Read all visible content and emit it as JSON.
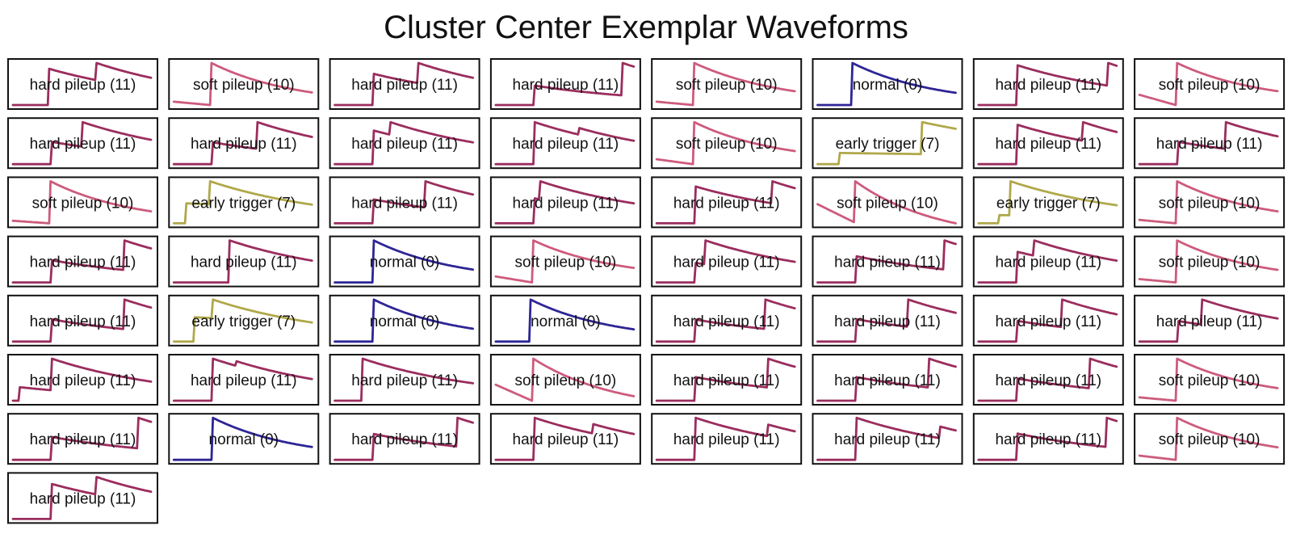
{
  "title": "Cluster Center Exemplar Waveforms",
  "colors": {
    "hard pileup": "#9b2d5e",
    "soft pileup": "#cd5b7c",
    "normal": "#2e2596",
    "early trigger": "#b0a84a"
  },
  "chart_data": {
    "type": "line",
    "title": "Cluster Center Exemplar Waveforms",
    "xlabel": "",
    "ylabel": "",
    "grid": false,
    "axes_visible": false,
    "n_samples": 100,
    "panels": [
      {
        "label": "hard pileup (11)",
        "kind": "hard pileup",
        "params": {
          "t0": 26,
          "a1": 0.95,
          "t2": 60,
          "a2": 0.45,
          "tau": 90,
          "base0": 0.1
        }
      },
      {
        "label": "soft pileup (10)",
        "kind": "soft pileup",
        "params": {
          "t0": 27,
          "a1": 0.97,
          "pre_slope": 0.08,
          "tau": 60,
          "base0": 0.08
        }
      },
      {
        "label": "hard pileup (11)",
        "kind": "hard pileup",
        "params": {
          "t0": 28,
          "a1": 0.85,
          "t2": 60,
          "a2": 0.55,
          "tau": 90,
          "base0": 0.08
        }
      },
      {
        "label": "hard pileup (11)",
        "kind": "hard pileup",
        "params": {
          "t0": 28,
          "a1": 0.45,
          "t2": 91,
          "a2": 0.75,
          "tau": 90,
          "base0": 0.08
        }
      },
      {
        "label": "soft pileup (10)",
        "kind": "soft pileup",
        "params": {
          "t0": 27,
          "a1": 0.97,
          "pre_slope": 0.08,
          "tau": 65,
          "base0": 0.08
        }
      },
      {
        "label": "normal (0)",
        "kind": "normal",
        "params": {
          "t0": 25,
          "a1": 0.95,
          "tau": 60,
          "base0": 0.08
        }
      },
      {
        "label": "hard pileup (11)",
        "kind": "hard pileup",
        "params": {
          "t0": 28,
          "a1": 0.7,
          "t2": 93,
          "a2": 0.4,
          "tau": 90,
          "base0": 0.08
        }
      },
      {
        "label": "soft pileup (10)",
        "kind": "soft pileup",
        "params": {
          "t0": 27,
          "a1": 0.95,
          "pre_slope": 0.25,
          "tau": 60,
          "base0": 0.2
        }
      },
      {
        "label": "hard pileup (11)",
        "kind": "hard pileup",
        "params": {
          "t0": 28,
          "a1": 0.5,
          "t2": 50,
          "a2": 0.55,
          "tau": 90,
          "base0": 0.08
        }
      },
      {
        "label": "hard pileup (11)",
        "kind": "hard pileup",
        "params": {
          "t0": 28,
          "a1": 0.45,
          "t2": 60,
          "a2": 0.55,
          "tau": 90,
          "base0": 0.08
        }
      },
      {
        "label": "hard pileup (11)",
        "kind": "hard pileup",
        "params": {
          "t0": 28,
          "a1": 0.8,
          "t2": 40,
          "a2": 0.3,
          "tau": 90,
          "base0": 0.08
        }
      },
      {
        "label": "hard pileup (11)",
        "kind": "hard pileup",
        "params": {
          "t0": 28,
          "a1": 0.95,
          "t2": 60,
          "a2": 0.15,
          "tau": 90,
          "base0": 0.08
        }
      },
      {
        "label": "soft pileup (10)",
        "kind": "soft pileup",
        "params": {
          "t0": 27,
          "a1": 0.97,
          "pre_slope": 0.12,
          "tau": 60,
          "base0": 0.1
        }
      },
      {
        "label": "early trigger (7)",
        "kind": "early trigger",
        "params": {
          "t1": 16,
          "e1": 0.2,
          "t2": 75,
          "e2": 0.55,
          "tau": 140,
          "base0": 0.06
        }
      },
      {
        "label": "hard pileup (11)",
        "kind": "hard pileup",
        "params": {
          "t0": 28,
          "a1": 0.95,
          "t2": 75,
          "a2": 0.45,
          "tau": 90,
          "base0": 0.08
        }
      },
      {
        "label": "hard pileup (11)",
        "kind": "hard pileup",
        "params": {
          "t0": 28,
          "a1": 0.5,
          "t2": 62,
          "a2": 0.6,
          "tau": 90,
          "base0": 0.08
        }
      },
      {
        "label": "soft pileup (10)",
        "kind": "soft pileup",
        "params": {
          "t0": 27,
          "a1": 0.98,
          "pre_slope": 0.06,
          "tau": 60,
          "base0": 0.08
        }
      },
      {
        "label": "early trigger (7)",
        "kind": "early trigger",
        "params": {
          "t1": 9,
          "e1": 0.45,
          "t2": 26,
          "e2": 0.5,
          "tau": 90,
          "base0": 0.06
        }
      },
      {
        "label": "hard pileup (11)",
        "kind": "hard pileup",
        "params": {
          "t0": 28,
          "a1": 0.5,
          "t2": 65,
          "a2": 0.55,
          "tau": 90,
          "base0": 0.08
        }
      },
      {
        "label": "hard pileup (11)",
        "kind": "hard pileup",
        "params": {
          "t0": 28,
          "a1": 0.55,
          "t2": 32,
          "a2": 0.4,
          "tau": 90,
          "base0": 0.08
        }
      },
      {
        "label": "hard pileup (11)",
        "kind": "hard pileup",
        "params": {
          "t0": 28,
          "a1": 0.75,
          "t2": 83,
          "a2": 0.45,
          "tau": 90,
          "base0": 0.08
        }
      },
      {
        "label": "soft pileup (10)",
        "kind": "soft pileup",
        "params": {
          "t0": 27,
          "a1": 0.97,
          "pre_slope": 0.3,
          "tau": 60,
          "base0": 0.6
        }
      },
      {
        "label": "early trigger (7)",
        "kind": "early trigger",
        "params": {
          "t1": 15,
          "e1": 0.15,
          "t2": 23,
          "e2": 0.62,
          "tau": 90,
          "base0": 0.06
        }
      },
      {
        "label": "soft pileup (10)",
        "kind": "soft pileup",
        "params": {
          "t0": 27,
          "a1": 0.97,
          "pre_slope": 0.08,
          "tau": 60,
          "base0": 0.1
        }
      },
      {
        "label": "hard pileup (11)",
        "kind": "hard pileup",
        "params": {
          "t0": 28,
          "a1": 0.45,
          "t2": 80,
          "a2": 0.6,
          "tau": 90,
          "base0": 0.08
        }
      },
      {
        "label": "hard pileup (11)",
        "kind": "hard pileup",
        "params": {
          "t0": 40,
          "a1": 0.9,
          "tau": 90,
          "base0": 0.08
        }
      },
      {
        "label": "normal (0)",
        "kind": "normal",
        "params": {
          "t0": 28,
          "a1": 0.95,
          "tau": 60,
          "base0": 0.08
        }
      },
      {
        "label": "soft pileup (10)",
        "kind": "soft pileup",
        "params": {
          "t0": 27,
          "a1": 0.95,
          "pre_slope": 0.15,
          "tau": 60,
          "base0": 0.08
        }
      },
      {
        "label": "hard pileup (11)",
        "kind": "hard pileup",
        "params": {
          "t0": 28,
          "a1": 0.45,
          "t2": 35,
          "a2": 0.55,
          "tau": 90,
          "base0": 0.08
        }
      },
      {
        "label": "hard pileup (11)",
        "kind": "hard pileup",
        "params": {
          "t0": 28,
          "a1": 0.45,
          "t2": 91,
          "a2": 0.5,
          "tau": 90,
          "base0": 0.08
        }
      },
      {
        "label": "hard pileup (11)",
        "kind": "hard pileup",
        "params": {
          "t0": 28,
          "a1": 0.6,
          "t2": 40,
          "a2": 0.3,
          "tau": 90,
          "base0": 0.08
        }
      },
      {
        "label": "soft pileup (10)",
        "kind": "soft pileup",
        "params": {
          "t0": 27,
          "a1": 0.97,
          "pre_slope": 0.08,
          "tau": 60,
          "base0": 0.08
        }
      },
      {
        "label": "hard pileup (11)",
        "kind": "hard pileup",
        "params": {
          "t0": 28,
          "a1": 0.45,
          "t2": 80,
          "a2": 0.6,
          "tau": 90,
          "base0": 0.08
        }
      },
      {
        "label": "early trigger (7)",
        "kind": "early trigger",
        "params": {
          "t1": 15,
          "e1": 0.55,
          "t2": 28,
          "e2": 0.4,
          "tau": 90,
          "base0": 0.06
        }
      },
      {
        "label": "normal (0)",
        "kind": "normal",
        "params": {
          "t0": 28,
          "a1": 0.95,
          "tau": 60,
          "base0": 0.08
        }
      },
      {
        "label": "normal (0)",
        "kind": "normal",
        "params": {
          "t0": 25,
          "a1": 0.95,
          "tau": 60,
          "base0": 0.08
        }
      },
      {
        "label": "hard pileup (11)",
        "kind": "hard pileup",
        "params": {
          "t0": 28,
          "a1": 0.45,
          "t2": 78,
          "a2": 0.6,
          "tau": 90,
          "base0": 0.08
        }
      },
      {
        "label": "hard pileup (11)",
        "kind": "hard pileup",
        "params": {
          "t0": 28,
          "a1": 0.45,
          "t2": 65,
          "a2": 0.55,
          "tau": 90,
          "base0": 0.08
        }
      },
      {
        "label": "hard pileup (11)",
        "kind": "hard pileup",
        "params": {
          "t0": 28,
          "a1": 0.45,
          "t2": 60,
          "a2": 0.6,
          "tau": 90,
          "base0": 0.08
        }
      },
      {
        "label": "hard pileup (11)",
        "kind": "hard pileup",
        "params": {
          "t0": 28,
          "a1": 0.45,
          "t2": 45,
          "a2": 0.55,
          "tau": 90,
          "base0": 0.08
        }
      },
      {
        "label": "hard pileup (11)",
        "kind": "hard pileup",
        "params": {
          "t0": 5,
          "a1": 0.3,
          "t2": 28,
          "a2": 0.7,
          "tau": 90,
          "base0": 0.08
        }
      },
      {
        "label": "hard pileup (11)",
        "kind": "hard pileup",
        "params": {
          "t0": 28,
          "a1": 0.9,
          "t2": 45,
          "a2": 0.1,
          "tau": 90,
          "base0": 0.08
        }
      },
      {
        "label": "hard pileup (11)",
        "kind": "hard pileup",
        "params": {
          "t0": 20,
          "a1": 0.95,
          "tau": 90,
          "base0": 0.08
        }
      },
      {
        "label": "soft pileup (10)",
        "kind": "soft pileup",
        "params": {
          "t0": 27,
          "a1": 0.97,
          "pre_slope": 0.3,
          "tau": 60,
          "base0": 0.5
        }
      },
      {
        "label": "hard pileup (11)",
        "kind": "hard pileup",
        "params": {
          "t0": 28,
          "a1": 0.45,
          "t2": 80,
          "a2": 0.55,
          "tau": 90,
          "base0": 0.08
        }
      },
      {
        "label": "hard pileup (11)",
        "kind": "hard pileup",
        "params": {
          "t0": 28,
          "a1": 0.45,
          "t2": 80,
          "a2": 0.55,
          "tau": 90,
          "base0": 0.08
        }
      },
      {
        "label": "hard pileup (11)",
        "kind": "hard pileup",
        "params": {
          "t0": 28,
          "a1": 0.45,
          "t2": 80,
          "a2": 0.6,
          "tau": 90,
          "base0": 0.08
        }
      },
      {
        "label": "soft pileup (10)",
        "kind": "soft pileup",
        "params": {
          "t0": 27,
          "a1": 0.97,
          "pre_slope": 0.08,
          "tau": 60,
          "base0": 0.08
        }
      },
      {
        "label": "hard pileup (11)",
        "kind": "hard pileup",
        "params": {
          "t0": 28,
          "a1": 0.45,
          "t2": 90,
          "a2": 0.6,
          "tau": 90,
          "base0": 0.08
        }
      },
      {
        "label": "normal (0)",
        "kind": "normal",
        "params": {
          "t0": 28,
          "a1": 0.95,
          "tau": 60,
          "base0": 0.08
        }
      },
      {
        "label": "hard pileup (11)",
        "kind": "hard pileup",
        "params": {
          "t0": 28,
          "a1": 0.45,
          "t2": 88,
          "a2": 0.5,
          "tau": 90,
          "base0": 0.08
        }
      },
      {
        "label": "hard pileup (11)",
        "kind": "hard pileup",
        "params": {
          "t0": 28,
          "a1": 0.9,
          "t2": 70,
          "a2": 0.2,
          "tau": 90,
          "base0": 0.08
        }
      },
      {
        "label": "hard pileup (11)",
        "kind": "hard pileup",
        "params": {
          "t0": 28,
          "a1": 0.9,
          "t2": 80,
          "a2": 0.25,
          "tau": 90,
          "base0": 0.08
        }
      },
      {
        "label": "hard pileup (11)",
        "kind": "hard pileup",
        "params": {
          "t0": 28,
          "a1": 0.9,
          "t2": 88,
          "a2": 0.25,
          "tau": 90,
          "base0": 0.08
        }
      },
      {
        "label": "hard pileup (11)",
        "kind": "hard pileup",
        "params": {
          "t0": 28,
          "a1": 0.45,
          "t2": 92,
          "a2": 0.5,
          "tau": 90,
          "base0": 0.08
        }
      },
      {
        "label": "soft pileup (10)",
        "kind": "soft pileup",
        "params": {
          "t0": 27,
          "a1": 0.97,
          "pre_slope": 0.1,
          "tau": 60,
          "base0": 0.1
        }
      },
      {
        "label": "hard pileup (11)",
        "kind": "hard pileup",
        "params": {
          "t0": 28,
          "a1": 0.7,
          "t2": 60,
          "a2": 0.35,
          "tau": 90,
          "base0": 0.08
        }
      }
    ]
  }
}
